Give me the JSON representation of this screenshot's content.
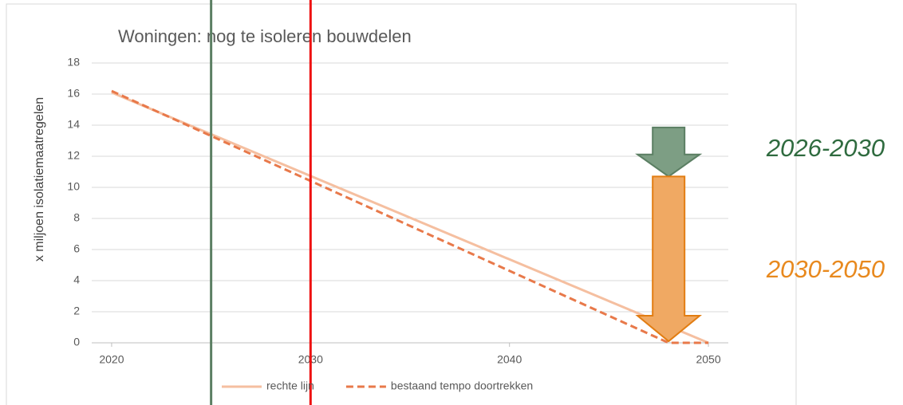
{
  "chart_data": {
    "type": "line",
    "title": "Woningen: nog te isoleren bouwdelen",
    "y_label": "x miljoen isolatiemaatregelen",
    "xlim": [
      2019,
      2051
    ],
    "xticks": [
      2020,
      2030,
      2040,
      2050
    ],
    "ylim": [
      0,
      18
    ],
    "yticks": [
      0,
      2,
      4,
      6,
      8,
      10,
      12,
      14,
      16,
      18
    ],
    "grid": true,
    "legend": "bottom",
    "series": [
      {
        "name": "rechte lijn",
        "color": "#f5bfa0",
        "dash": false,
        "x": [
          2020,
          2050
        ],
        "values": [
          16.1,
          0
        ]
      },
      {
        "name": "bestaand tempo doortrekken",
        "color": "#e8794a",
        "dash": true,
        "x": [
          2020,
          2048,
          2050
        ],
        "values": [
          16.2,
          0,
          0
        ]
      }
    ],
    "markers": [
      {
        "x": 2025,
        "color": "#5b7f63"
      },
      {
        "x": 2030,
        "color": "#ee1111"
      }
    ],
    "annotations": [
      {
        "label": "2026-2030",
        "x": 2048,
        "from": 13.85,
        "to": 10.7,
        "fill": "#7d9e84",
        "stroke": "#5b7f63",
        "text_color": "#2f6b3f"
      },
      {
        "label": "2030-2050",
        "x": 2048,
        "from": 10.7,
        "to": 0.1,
        "fill": "#f0a963",
        "stroke": "#e27d12",
        "text_color": "#e8891e"
      }
    ]
  }
}
